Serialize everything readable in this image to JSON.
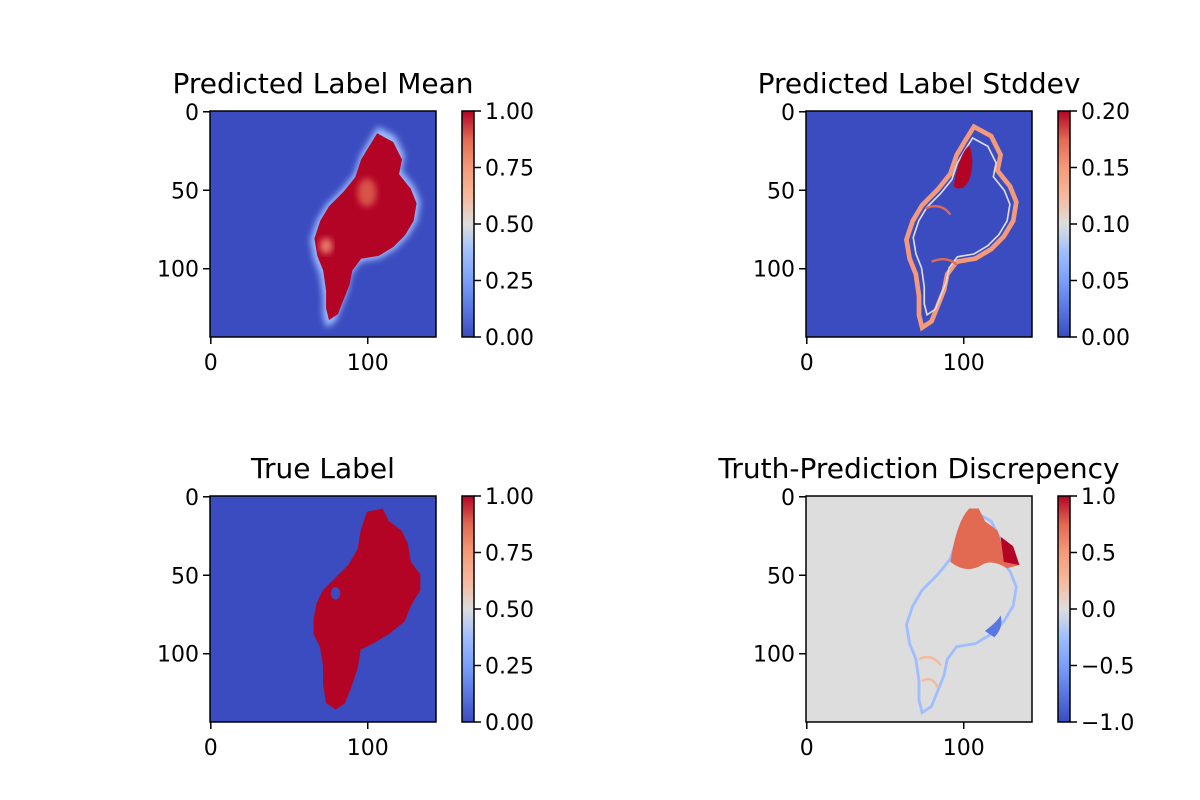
{
  "chart_data": [
    {
      "type": "heatmap",
      "title": "Predicted Label Mean",
      "image_size": [
        144,
        144
      ],
      "xticks": [
        0,
        100
      ],
      "yticks": [
        0,
        50,
        100
      ],
      "colormap": "coolwarm",
      "colorbar": {
        "min": 0.0,
        "max": 1.0,
        "ticks": [
          "0.00",
          "0.25",
          "0.50",
          "0.75",
          "1.00"
        ]
      },
      "content": "mean"
    },
    {
      "type": "heatmap",
      "title": "Predicted Label Stddev",
      "image_size": [
        144,
        144
      ],
      "xticks": [
        0,
        100
      ],
      "yticks": [
        0,
        50,
        100
      ],
      "colormap": "coolwarm",
      "colorbar": {
        "min": 0.0,
        "max": 0.2,
        "ticks": [
          "0.00",
          "0.05",
          "0.10",
          "0.15",
          "0.20"
        ]
      },
      "content": "stddev"
    },
    {
      "type": "heatmap",
      "title": "True Label",
      "image_size": [
        144,
        144
      ],
      "xticks": [
        0,
        100
      ],
      "yticks": [
        0,
        50,
        100
      ],
      "colormap": "coolwarm",
      "colorbar": {
        "min": 0.0,
        "max": 1.0,
        "ticks": [
          "0.00",
          "0.25",
          "0.50",
          "0.75",
          "1.00"
        ]
      },
      "content": "truth"
    },
    {
      "type": "heatmap",
      "title": "Truth-Prediction Discrepency",
      "image_size": [
        144,
        144
      ],
      "xticks": [
        0,
        100
      ],
      "yticks": [
        0,
        50,
        100
      ],
      "colormap": "coolwarm",
      "colorbar": {
        "min": -1.0,
        "max": 1.0,
        "ticks": [
          "−1.0",
          "−0.5",
          "0.0",
          "0.5",
          "1.0"
        ]
      },
      "content": "diff"
    }
  ],
  "colors": {
    "cold": "#3b4cc0",
    "neutral": "#dddddd",
    "hot": "#b40426"
  }
}
